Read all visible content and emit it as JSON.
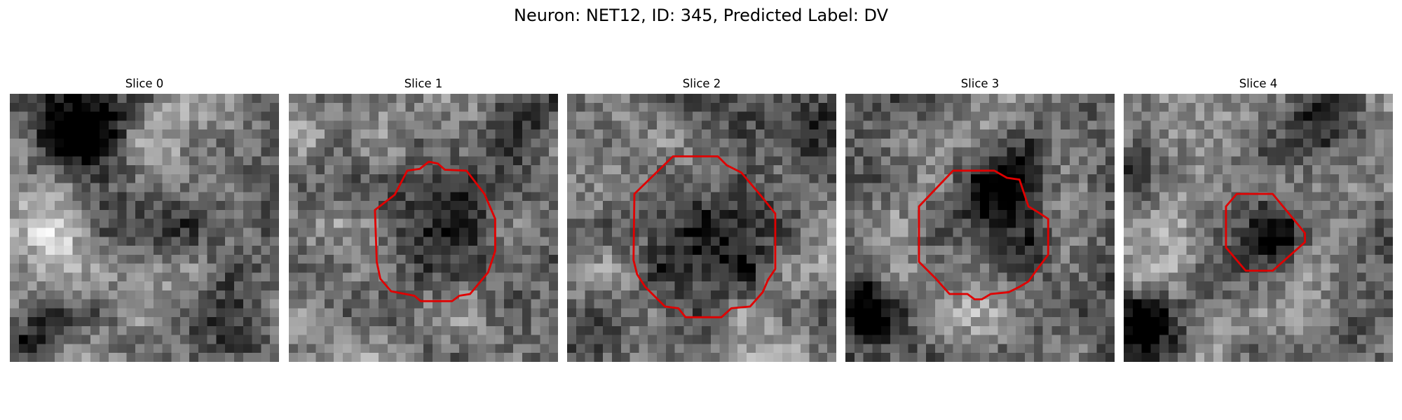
{
  "figure": {
    "title": "Neuron: NET12, ID: 345, Predicted Label: DV"
  },
  "panels": [
    {
      "title": "Slice 0",
      "seed": 11,
      "contour": [],
      "contour_color": "#e00000",
      "blobs": [
        {
          "x": 8,
          "y": 4,
          "r": 4.5,
          "a": -0.55
        },
        {
          "x": 2,
          "y": 28,
          "r": 3.0,
          "a": -0.45
        },
        {
          "x": 26,
          "y": 27,
          "r": 4.5,
          "a": -0.25
        },
        {
          "x": 17,
          "y": 15,
          "r": 5.0,
          "a": -0.18
        },
        {
          "x": 5,
          "y": 15,
          "r": 4.0,
          "a": 0.25
        },
        {
          "x": 17,
          "y": 4,
          "r": 4.0,
          "a": 0.2
        }
      ]
    },
    {
      "title": "Slice 1",
      "seed": 23,
      "contour_color": "#e00000",
      "contour": [
        [
          11.8,
          11.3
        ],
        [
          13.2,
          8.6
        ],
        [
          14.6,
          8.4
        ],
        [
          15.6,
          7.6
        ],
        [
          16.6,
          7.8
        ],
        [
          17.4,
          8.5
        ],
        [
          19.8,
          8.6
        ],
        [
          21.8,
          11.2
        ],
        [
          23.0,
          14.0
        ],
        [
          23.0,
          17.6
        ],
        [
          22.2,
          20.0
        ],
        [
          20.2,
          22.4
        ],
        [
          19.0,
          22.6
        ],
        [
          18.2,
          23.2
        ],
        [
          14.7,
          23.2
        ],
        [
          14.0,
          22.6
        ],
        [
          11.4,
          22.1
        ],
        [
          10.2,
          20.7
        ],
        [
          9.8,
          18.8
        ],
        [
          9.6,
          13.0
        ]
      ],
      "blobs": [
        {
          "x": 16,
          "y": 15.5,
          "r": 6.8,
          "a": -0.6
        },
        {
          "x": 16,
          "y": 15.5,
          "r": 9.5,
          "a": 0.2
        },
        {
          "x": 26,
          "y": 2,
          "r": 3.5,
          "a": -0.35
        },
        {
          "x": 2,
          "y": 4,
          "r": 2.5,
          "a": 0.2
        }
      ]
    },
    {
      "title": "Slice 2",
      "seed": 37,
      "contour_color": "#e00000",
      "contour": [
        [
          7.5,
          11.2
        ],
        [
          11.8,
          7.0
        ],
        [
          16.8,
          7.0
        ],
        [
          17.8,
          8.0
        ],
        [
          19.4,
          8.8
        ],
        [
          21.6,
          11.4
        ],
        [
          23.2,
          13.4
        ],
        [
          23.2,
          19.6
        ],
        [
          22.4,
          20.8
        ],
        [
          21.8,
          22.2
        ],
        [
          20.4,
          23.8
        ],
        [
          18.3,
          24.0
        ],
        [
          17.2,
          25.0
        ],
        [
          13.2,
          25.0
        ],
        [
          12.4,
          24.0
        ],
        [
          10.9,
          23.8
        ],
        [
          8.7,
          21.6
        ],
        [
          7.8,
          20.2
        ],
        [
          7.4,
          18.6
        ]
      ],
      "blobs": [
        {
          "x": 15.4,
          "y": 15.8,
          "r": 7.8,
          "a": -0.6
        },
        {
          "x": 15.4,
          "y": 15.8,
          "r": 11.0,
          "a": 0.22
        },
        {
          "x": 26,
          "y": 4,
          "r": 3.5,
          "a": -0.3
        },
        {
          "x": 2,
          "y": 26,
          "r": 3.0,
          "a": -0.35
        }
      ]
    },
    {
      "title": "Slice 3",
      "seed": 53,
      "contour_color": "#e00000",
      "contour": [
        [
          8.2,
          12.6
        ],
        [
          12.0,
          8.6
        ],
        [
          16.6,
          8.6
        ],
        [
          18.0,
          9.4
        ],
        [
          19.4,
          9.6
        ],
        [
          20.0,
          11.4
        ],
        [
          20.4,
          12.6
        ],
        [
          21.4,
          13.2
        ],
        [
          22.6,
          14.0
        ],
        [
          22.6,
          18.0
        ],
        [
          21.4,
          19.6
        ],
        [
          20.4,
          21.0
        ],
        [
          19.4,
          21.6
        ],
        [
          18.2,
          22.2
        ],
        [
          16.2,
          22.4
        ],
        [
          15.2,
          23.0
        ],
        [
          14.4,
          23.0
        ],
        [
          13.6,
          22.4
        ],
        [
          11.6,
          22.4
        ],
        [
          10.0,
          20.6
        ],
        [
          8.2,
          18.8
        ]
      ],
      "blobs": [
        {
          "x": 17,
          "y": 11,
          "r": 4.0,
          "a": -0.45
        },
        {
          "x": 15,
          "y": 16,
          "r": 3.5,
          "a": 0.1
        },
        {
          "x": 20,
          "y": 17,
          "r": 3.0,
          "a": -0.35
        },
        {
          "x": 1.5,
          "y": 24,
          "r": 3.5,
          "a": -0.55
        },
        {
          "x": 15,
          "y": 25.5,
          "r": 4.0,
          "a": 0.18
        }
      ]
    },
    {
      "title": "Slice 4",
      "seed": 71,
      "contour_color": "#e00000",
      "contour": [
        [
          11.4,
          12.6
        ],
        [
          12.6,
          11.2
        ],
        [
          16.6,
          11.2
        ],
        [
          19.4,
          14.6
        ],
        [
          20.2,
          15.6
        ],
        [
          20.2,
          16.6
        ],
        [
          16.6,
          19.8
        ],
        [
          13.6,
          19.8
        ],
        [
          11.4,
          17.2
        ]
      ],
      "blobs": [
        {
          "x": 17,
          "y": 15.5,
          "r": 2.7,
          "a": -0.55
        },
        {
          "x": 23,
          "y": 2.5,
          "r": 4.0,
          "a": -0.5
        },
        {
          "x": 2.5,
          "y": 26,
          "r": 3.5,
          "a": -0.5
        },
        {
          "x": 1,
          "y": 8,
          "r": 3.0,
          "a": -0.25
        },
        {
          "x": 14,
          "y": 2,
          "r": 3.5,
          "a": 0.2
        }
      ]
    }
  ]
}
